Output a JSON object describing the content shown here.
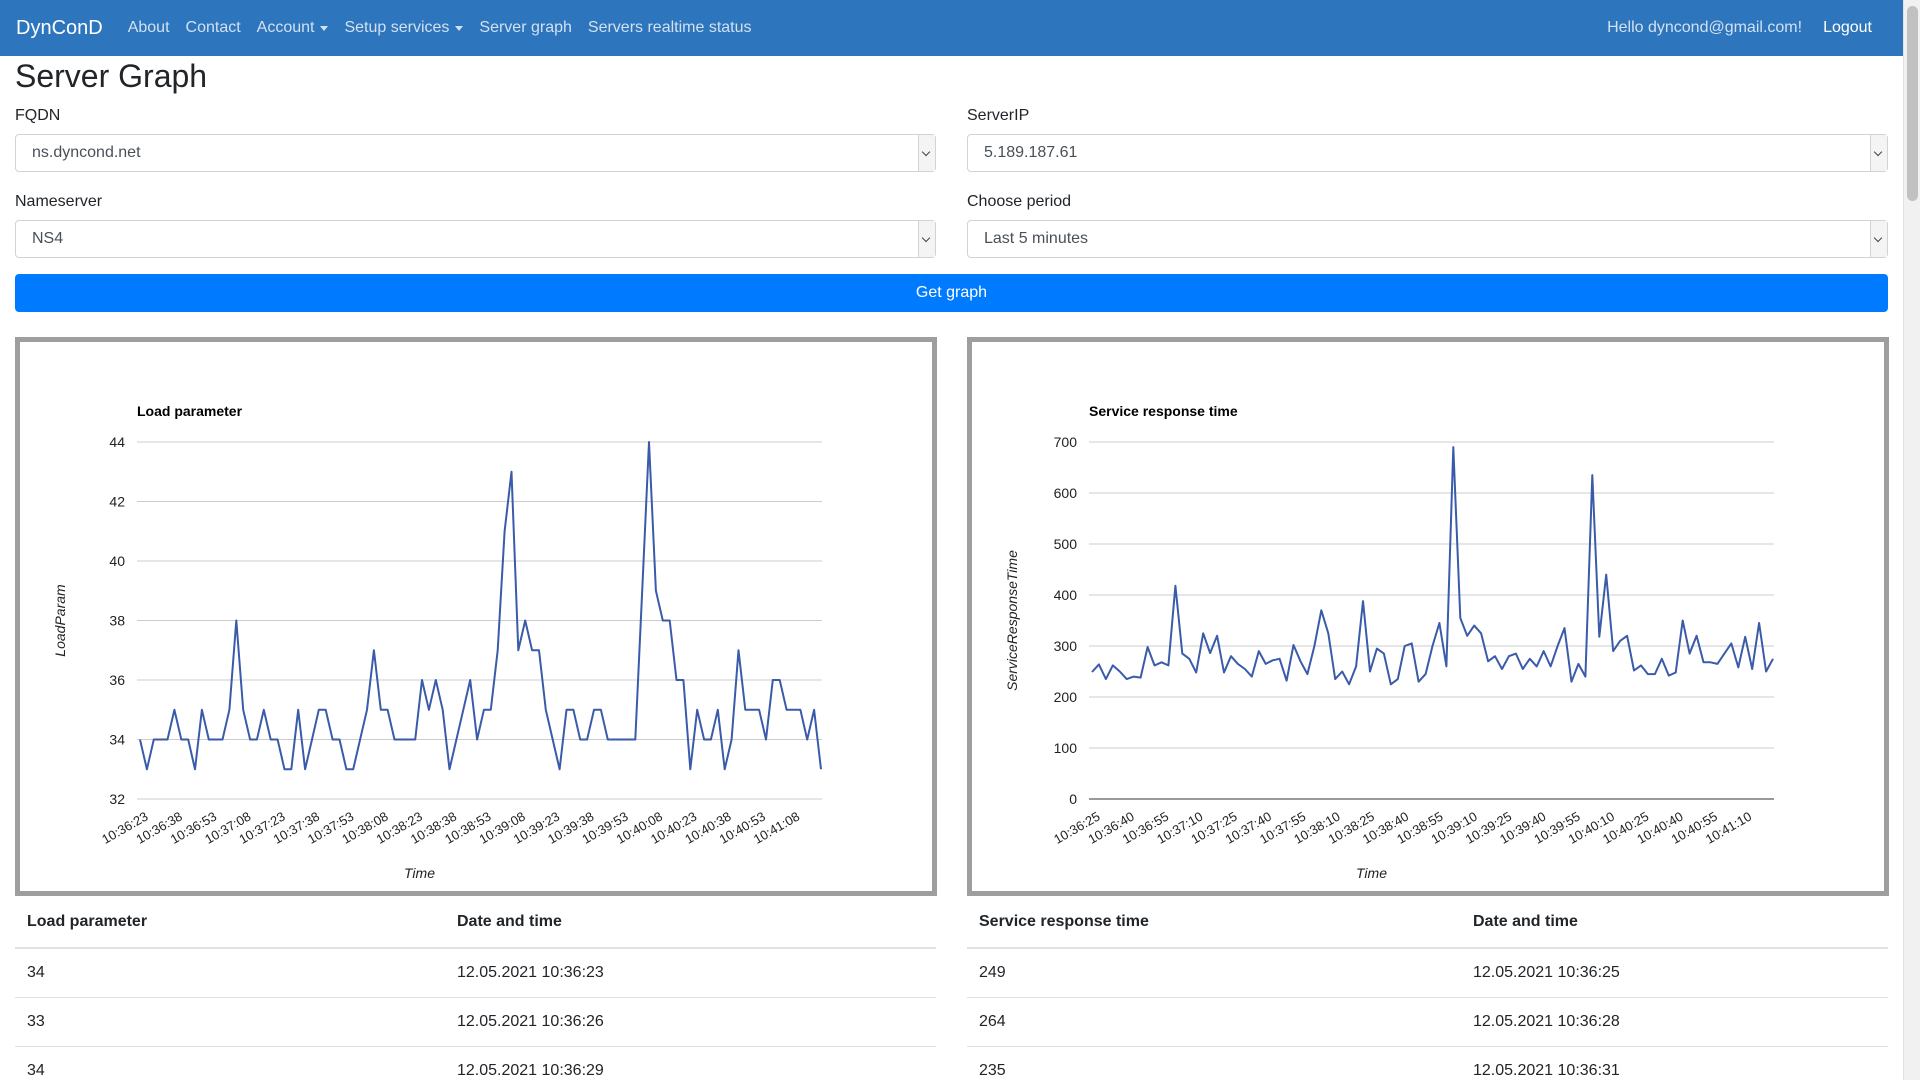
{
  "nav": {
    "brand": "DynConD",
    "links": [
      "About",
      "Contact",
      "Account",
      "Setup services",
      "Server graph",
      "Servers realtime status"
    ],
    "greeting": "Hello dyncond@gmail.com!",
    "logout": "Logout"
  },
  "page": {
    "title": "Server Graph"
  },
  "form": {
    "fqdn_label": "FQDN",
    "fqdn_value": "ns.dyncond.net",
    "serverip_label": "ServerIP",
    "serverip_value": "5.189.187.61",
    "nameserver_label": "Nameserver",
    "nameserver_value": "NS4",
    "period_label": "Choose period",
    "period_value": "Last 5 minutes",
    "submit_label": "Get graph"
  },
  "chart_data": [
    {
      "type": "line",
      "title": "Load parameter",
      "xlabel": "Time",
      "ylabel": "LoadParam",
      "ylim": [
        32,
        44
      ],
      "yticks": [
        32,
        34,
        36,
        38,
        40,
        42,
        44
      ],
      "xtick_labels": [
        "10:36:23",
        "10:36:38",
        "10:36:53",
        "10:37:08",
        "10:37:23",
        "10:37:38",
        "10:37:53",
        "10:38:08",
        "10:38:23",
        "10:38:38",
        "10:38:53",
        "10:39:08",
        "10:39:23",
        "10:39:38",
        "10:39:53",
        "10:40:08",
        "10:40:23",
        "10:40:38",
        "10:40:53",
        "10:41:08"
      ],
      "grid": true,
      "color": "#3a5ba9",
      "values": [
        34,
        33,
        34,
        34,
        34,
        35,
        34,
        34,
        33,
        35,
        34,
        34,
        34,
        35,
        38,
        35,
        34,
        34,
        35,
        34,
        34,
        33,
        33,
        35,
        33,
        34,
        35,
        35,
        34,
        34,
        33,
        33,
        34,
        35,
        37,
        35,
        35,
        34,
        34,
        34,
        34,
        36,
        35,
        36,
        35,
        33,
        34,
        35,
        36,
        34,
        35,
        35,
        37,
        41,
        43,
        37,
        38,
        37,
        37,
        35,
        34,
        33,
        35,
        35,
        34,
        34,
        35,
        35,
        34,
        34,
        34,
        34,
        34,
        39,
        44,
        39,
        38,
        38,
        36,
        36,
        33,
        35,
        34,
        34,
        35,
        33,
        34,
        37,
        35,
        35,
        35,
        34,
        36,
        36,
        35,
        35,
        35,
        34,
        35,
        33
      ]
    },
    {
      "type": "line",
      "title": "Service response time",
      "xlabel": "Time",
      "ylabel": "ServiceResponseTime",
      "ylim": [
        0,
        700
      ],
      "yticks": [
        0,
        100,
        200,
        300,
        400,
        500,
        600,
        700
      ],
      "xtick_labels": [
        "10:36:25",
        "10:36:40",
        "10:36:55",
        "10:37:10",
        "10:37:25",
        "10:37:40",
        "10:37:55",
        "10:38:10",
        "10:38:25",
        "10:38:40",
        "10:38:55",
        "10:39:10",
        "10:39:25",
        "10:39:40",
        "10:39:55",
        "10:40:10",
        "10:40:25",
        "10:40:40",
        "10:40:55",
        "10:41:10"
      ],
      "grid": true,
      "color": "#3a5ba9",
      "values": [
        249,
        264,
        235,
        262,
        250,
        235,
        240,
        238,
        298,
        262,
        268,
        262,
        418,
        285,
        275,
        248,
        325,
        286,
        320,
        248,
        280,
        265,
        255,
        240,
        290,
        265,
        272,
        275,
        232,
        302,
        270,
        245,
        300,
        370,
        325,
        235,
        250,
        225,
        260,
        388,
        250,
        295,
        285,
        225,
        235,
        300,
        305,
        230,
        245,
        300,
        345,
        260,
        690,
        355,
        320,
        340,
        325,
        270,
        280,
        255,
        280,
        285,
        255,
        275,
        260,
        290,
        260,
        300,
        335,
        230,
        265,
        240,
        635,
        318,
        440,
        290,
        310,
        320,
        252,
        262,
        245,
        245,
        275,
        242,
        248,
        350,
        285,
        320,
        268,
        268,
        265,
        285,
        305,
        258,
        318,
        255,
        345,
        250,
        275
      ]
    }
  ],
  "tables": {
    "load": {
      "headers": [
        "Load parameter",
        "Date and time"
      ],
      "rows": [
        [
          "34",
          "12.05.2021 10:36:23"
        ],
        [
          "33",
          "12.05.2021 10:36:26"
        ],
        [
          "34",
          "12.05.2021 10:36:29"
        ]
      ]
    },
    "response": {
      "headers": [
        "Service response time",
        "Date and time"
      ],
      "rows": [
        [
          "249",
          "12.05.2021 10:36:25"
        ],
        [
          "264",
          "12.05.2021 10:36:28"
        ],
        [
          "235",
          "12.05.2021 10:36:31"
        ]
      ]
    }
  },
  "icons": {
    "select_arrow": "chevron-down-icon",
    "account_caret": "caret-down-icon"
  },
  "colors": {
    "navbar": "#2d75bd",
    "primary_button": "#007bff",
    "chart_line": "#3a5ba9"
  }
}
